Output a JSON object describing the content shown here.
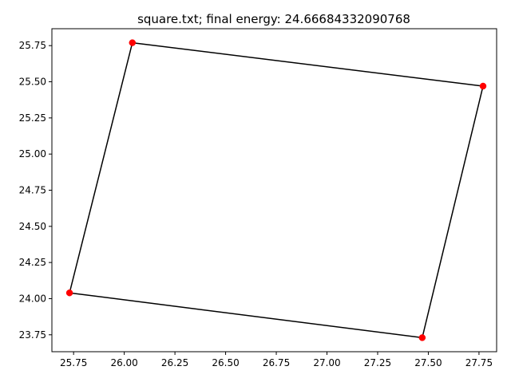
{
  "chart_data": {
    "type": "line",
    "title": "square.txt; final energy: 24.66684332090768",
    "xlabel": "",
    "ylabel": "",
    "xlim": [
      25.643,
      27.837
    ],
    "ylim": [
      23.633,
      25.867
    ],
    "xticks": [
      {
        "value": 25.75,
        "label": "25.75"
      },
      {
        "value": 26.0,
        "label": "26.00"
      },
      {
        "value": 26.25,
        "label": "26.25"
      },
      {
        "value": 26.5,
        "label": "26.50"
      },
      {
        "value": 26.75,
        "label": "26.75"
      },
      {
        "value": 27.0,
        "label": "27.00"
      },
      {
        "value": 27.25,
        "label": "27.25"
      },
      {
        "value": 27.5,
        "label": "27.50"
      },
      {
        "value": 27.75,
        "label": "27.75"
      }
    ],
    "yticks": [
      {
        "value": 23.75,
        "label": "23.75"
      },
      {
        "value": 24.0,
        "label": "24.00"
      },
      {
        "value": 24.25,
        "label": "24.25"
      },
      {
        "value": 24.5,
        "label": "24.50"
      },
      {
        "value": 24.75,
        "label": "24.75"
      },
      {
        "value": 25.0,
        "label": "25.00"
      },
      {
        "value": 25.25,
        "label": "25.25"
      },
      {
        "value": 25.5,
        "label": "25.50"
      },
      {
        "value": 25.75,
        "label": "25.75"
      }
    ],
    "grid": false,
    "closed": true,
    "line_color": "#000000",
    "marker_color": "#ff0000",
    "points": [
      {
        "x": 26.04,
        "y": 25.77
      },
      {
        "x": 27.77,
        "y": 25.47
      },
      {
        "x": 27.47,
        "y": 23.73
      },
      {
        "x": 25.73,
        "y": 24.04
      }
    ]
  }
}
